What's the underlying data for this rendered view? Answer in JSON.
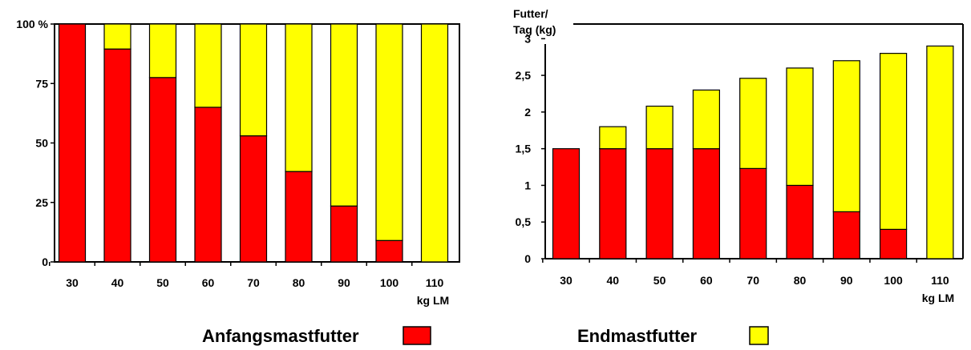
{
  "colors": {
    "anfang": "#ff0000",
    "end": "#ffff00",
    "stroke": "#000000"
  },
  "legend": {
    "anfang_label": "Anfangsmastfutter",
    "end_label": "Endmastfutter"
  },
  "chart_data": [
    {
      "type": "bar",
      "stacked": true,
      "categories": [
        "30",
        "40",
        "50",
        "60",
        "70",
        "80",
        "90",
        "100",
        "110"
      ],
      "x_unit_label": "kg LM",
      "ylabel": "",
      "y_ticks": [
        "0",
        "25",
        "50",
        "75",
        "100 %"
      ],
      "ylim": [
        0,
        100
      ],
      "series": [
        {
          "name": "Anfangsmastfutter",
          "values": [
            100,
            89.5,
            77.5,
            65,
            53,
            38,
            23.5,
            9,
            0
          ]
        },
        {
          "name": "Endmastfutter",
          "values": [
            0,
            10.5,
            22.5,
            35,
            47,
            62,
            76.5,
            91,
            100
          ]
        }
      ],
      "grid": false,
      "legend_position": "bottom"
    },
    {
      "type": "bar",
      "stacked": true,
      "categories": [
        "30",
        "40",
        "50",
        "60",
        "70",
        "80",
        "90",
        "100",
        "110"
      ],
      "x_unit_label": "kg LM",
      "ylabel_lines": [
        "Futter/",
        "Tag (kg)"
      ],
      "y_ticks": [
        "0",
        "0,5",
        "1",
        "1,5",
        "2",
        "2,5",
        "3"
      ],
      "ylim": [
        0,
        3.2
      ],
      "series": [
        {
          "name": "Anfangsmastfutter",
          "values": [
            1.5,
            1.5,
            1.5,
            1.5,
            1.23,
            1.0,
            0.64,
            0.4,
            0
          ]
        },
        {
          "name": "Endmastfutter",
          "values": [
            0,
            0.3,
            0.58,
            0.8,
            1.23,
            1.6,
            2.06,
            2.4,
            2.9
          ]
        }
      ],
      "grid": false,
      "legend_position": "bottom"
    }
  ]
}
